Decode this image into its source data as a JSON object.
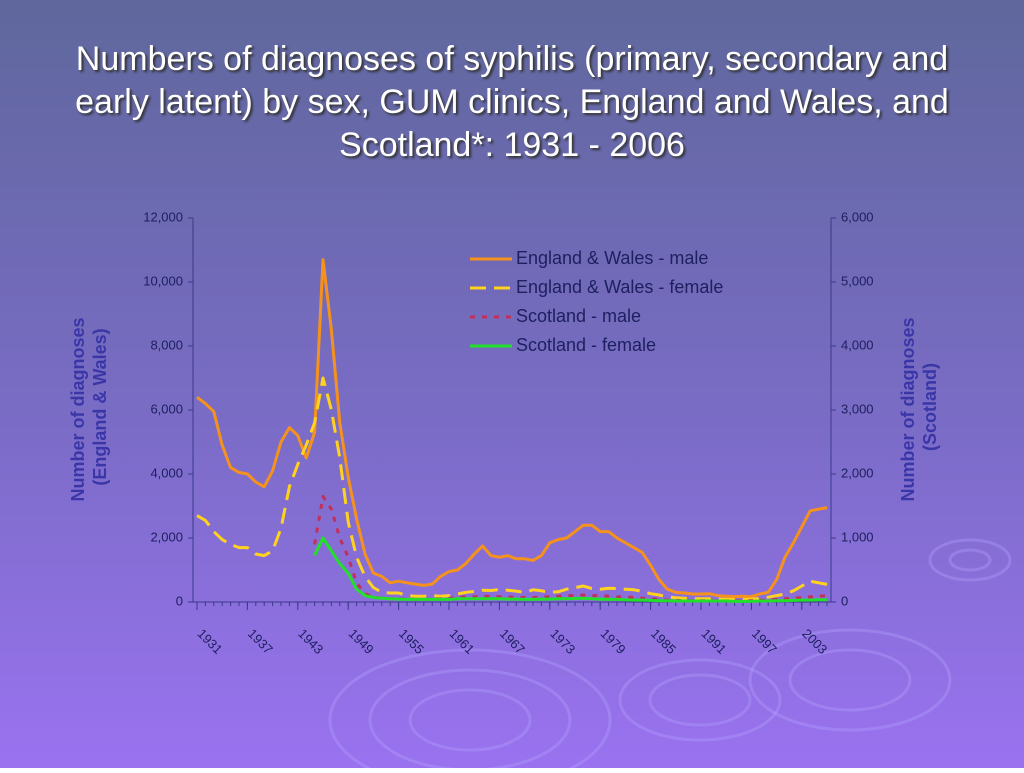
{
  "chart_data": {
    "type": "line",
    "title": "Numbers of diagnoses of syphilis (primary, secondary and early latent) by sex, GUM clinics, England and Wales,  and Scotland*: 1931 - 2006",
    "y_label": "Number of diagnoses (England & Wales)",
    "y2_label": "Number of diagnoses (Scotland)",
    "x": [
      1931,
      1932,
      1933,
      1934,
      1935,
      1936,
      1937,
      1938,
      1939,
      1940,
      1941,
      1942,
      1943,
      1944,
      1945,
      1946,
      1947,
      1948,
      1949,
      1950,
      1951,
      1952,
      1953,
      1954,
      1955,
      1956,
      1957,
      1958,
      1959,
      1960,
      1961,
      1962,
      1963,
      1964,
      1965,
      1966,
      1967,
      1968,
      1969,
      1970,
      1971,
      1972,
      1973,
      1974,
      1975,
      1976,
      1977,
      1978,
      1979,
      1980,
      1981,
      1982,
      1983,
      1984,
      1985,
      1986,
      1987,
      1988,
      1989,
      1990,
      1991,
      1992,
      1993,
      1994,
      1995,
      1996,
      1997,
      1998,
      1999,
      2000,
      2001,
      2002,
      2003,
      2004,
      2005,
      2006
    ],
    "xlim": [
      1931,
      2006
    ],
    "xticks": [
      1931,
      1937,
      1943,
      1949,
      1955,
      1961,
      1967,
      1973,
      1979,
      1985,
      1991,
      1997,
      2003
    ],
    "ylim": [
      0,
      12000
    ],
    "yticks": [
      0,
      {
        "value": 2000,
        "label": "2,000"
      },
      {
        "value": 4000,
        "label": "4,000"
      },
      {
        "value": 6000,
        "label": "6,000"
      },
      {
        "value": 8000,
        "label": "8,000"
      },
      {
        "value": 10000,
        "label": "10,000"
      },
      {
        "value": 12000,
        "label": "12,000"
      }
    ],
    "y2lim": [
      0,
      6000
    ],
    "y2ticks": [
      0,
      {
        "value": 1000,
        "label": "1,000"
      },
      {
        "value": 2000,
        "label": "2,000"
      },
      {
        "value": 3000,
        "label": "3,000"
      },
      {
        "value": 4000,
        "label": "4,000"
      },
      {
        "value": 5000,
        "label": "5,000"
      },
      {
        "value": 6000,
        "label": "6,000"
      }
    ],
    "legend": "top",
    "series": [
      {
        "name": "England & Wales - male",
        "color": "#f5921e",
        "line_style": "solid",
        "values": [
          6400,
          6200,
          5950,
          4900,
          4200,
          4050,
          4000,
          3750,
          3600,
          4100,
          5000,
          5450,
          5200,
          4500,
          5300,
          10700,
          8500,
          5600,
          3900,
          2600,
          1500,
          900,
          800,
          600,
          650,
          600,
          560,
          520,
          560,
          800,
          950,
          1000,
          1200,
          1500,
          1750,
          1450,
          1400,
          1450,
          1350,
          1350,
          1300,
          1450,
          1850,
          1950,
          2000,
          2200,
          2400,
          2400,
          2200,
          2200,
          2000,
          1850,
          1700,
          1550,
          1150,
          700,
          400,
          300,
          280,
          250,
          250,
          260,
          200,
          180,
          170,
          180,
          170,
          250,
          300,
          700,
          1400,
          1850,
          2350,
          2850,
          2900,
          2950
        ]
      },
      {
        "name": "England & Wales - female",
        "color": "#ffd21e",
        "line_style": "dashed",
        "values": [
          2700,
          2550,
          2200,
          1950,
          1800,
          1700,
          1700,
          1500,
          1450,
          1600,
          2300,
          3600,
          4300,
          4900,
          5600,
          7000,
          6000,
          4500,
          2500,
          1400,
          800,
          450,
          300,
          280,
          280,
          200,
          180,
          180,
          200,
          180,
          200,
          250,
          300,
          330,
          370,
          360,
          390,
          370,
          340,
          300,
          380,
          350,
          300,
          320,
          400,
          450,
          500,
          420,
          400,
          430,
          420,
          400,
          380,
          330,
          260,
          220,
          160,
          130,
          120,
          100,
          100,
          100,
          90,
          80,
          80,
          80,
          90,
          110,
          150,
          200,
          250,
          350,
          500,
          650,
          600,
          550
        ]
      },
      {
        "name": "Scotland - male",
        "color": "#c0305a",
        "line_style": "dotted",
        "axis": "y2",
        "values": [
          null,
          null,
          null,
          null,
          null,
          null,
          null,
          null,
          null,
          null,
          null,
          null,
          null,
          null,
          900,
          1650,
          1450,
          1000,
          700,
          300,
          130,
          80,
          60,
          50,
          50,
          45,
          40,
          40,
          45,
          50,
          60,
          70,
          80,
          80,
          90,
          90,
          80,
          80,
          70,
          70,
          70,
          80,
          80,
          90,
          100,
          100,
          110,
          100,
          100,
          90,
          80,
          80,
          70,
          60,
          50,
          40,
          30,
          25,
          20,
          20,
          20,
          20,
          20,
          15,
          15,
          15,
          20,
          25,
          30,
          40,
          50,
          60,
          70,
          80,
          90,
          100
        ]
      },
      {
        "name": "Scotland - female",
        "color": "#22e02a",
        "line_style": "solid",
        "axis": "y2",
        "values": [
          null,
          null,
          null,
          null,
          null,
          null,
          null,
          null,
          null,
          null,
          null,
          null,
          null,
          null,
          730,
          1000,
          800,
          600,
          450,
          200,
          100,
          70,
          60,
          50,
          45,
          40,
          40,
          40,
          40,
          40,
          40,
          50,
          50,
          50,
          50,
          50,
          50,
          45,
          45,
          40,
          40,
          45,
          45,
          50,
          50,
          55,
          60,
          50,
          45,
          40,
          40,
          35,
          30,
          30,
          25,
          20,
          20,
          15,
          15,
          15,
          15,
          15,
          15,
          15,
          10,
          10,
          10,
          15,
          15,
          20,
          20,
          25,
          30,
          30,
          35,
          35
        ]
      }
    ]
  }
}
